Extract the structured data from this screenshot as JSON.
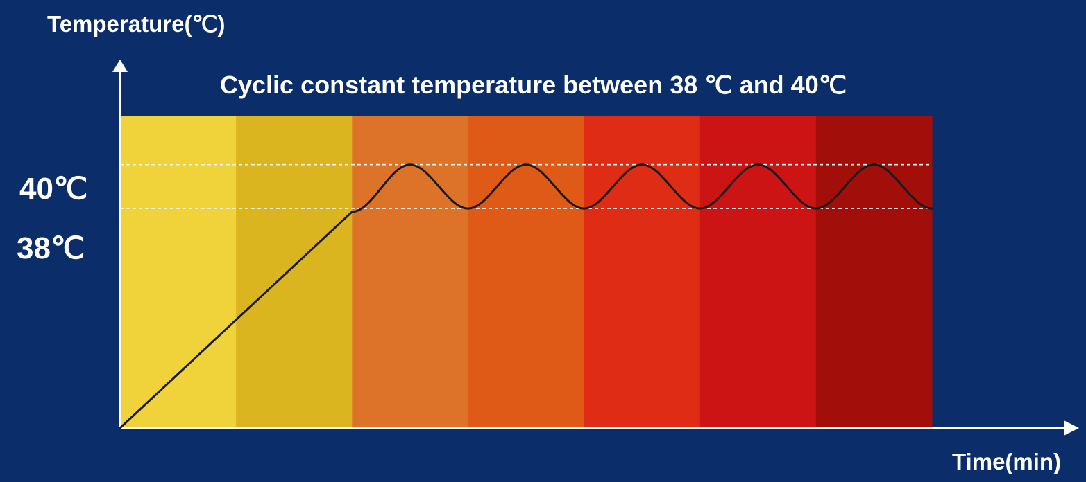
{
  "chart_data": {
    "type": "line",
    "title": "Cyclic constant temperature between 38 ℃ and 40℃",
    "ylabel": "Temperature(℃)",
    "xlabel": "Time(min)",
    "y_ticks": [
      {
        "value": 40,
        "label": "40℃"
      },
      {
        "value": 38,
        "label": "38℃"
      }
    ],
    "series": [
      {
        "values": [
          {
            "x": 0,
            "y": 28.0
          },
          {
            "x": 2,
            "y": 37.85
          },
          {
            "x": 2.5,
            "y": 40.0
          },
          {
            "x": 3,
            "y": 38.0
          },
          {
            "x": 3.5,
            "y": 40.0
          },
          {
            "x": 4,
            "y": 38.0
          },
          {
            "x": 4.5,
            "y": 40.0
          },
          {
            "x": 5,
            "y": 38.0
          },
          {
            "x": 5.5,
            "y": 40.0
          },
          {
            "x": 6,
            "y": 38.0
          },
          {
            "x": 6.5,
            "y": 40.0
          },
          {
            "x": 7,
            "y": 38.0
          }
        ]
      }
    ],
    "background_band_colors": [
      "#f0d23a",
      "#dbb520",
      "#dc7329",
      "#df5a16",
      "#df2d15",
      "#cc1414",
      "#a20e0a"
    ],
    "xlim": [
      0,
      7
    ],
    "ylim": [
      28,
      42.2
    ],
    "grid": false
  },
  "colors": {
    "background": "#0b2e6b",
    "text": "#ffffff",
    "line": "#1a1a1a",
    "guide_line": "#f3f3f3"
  }
}
